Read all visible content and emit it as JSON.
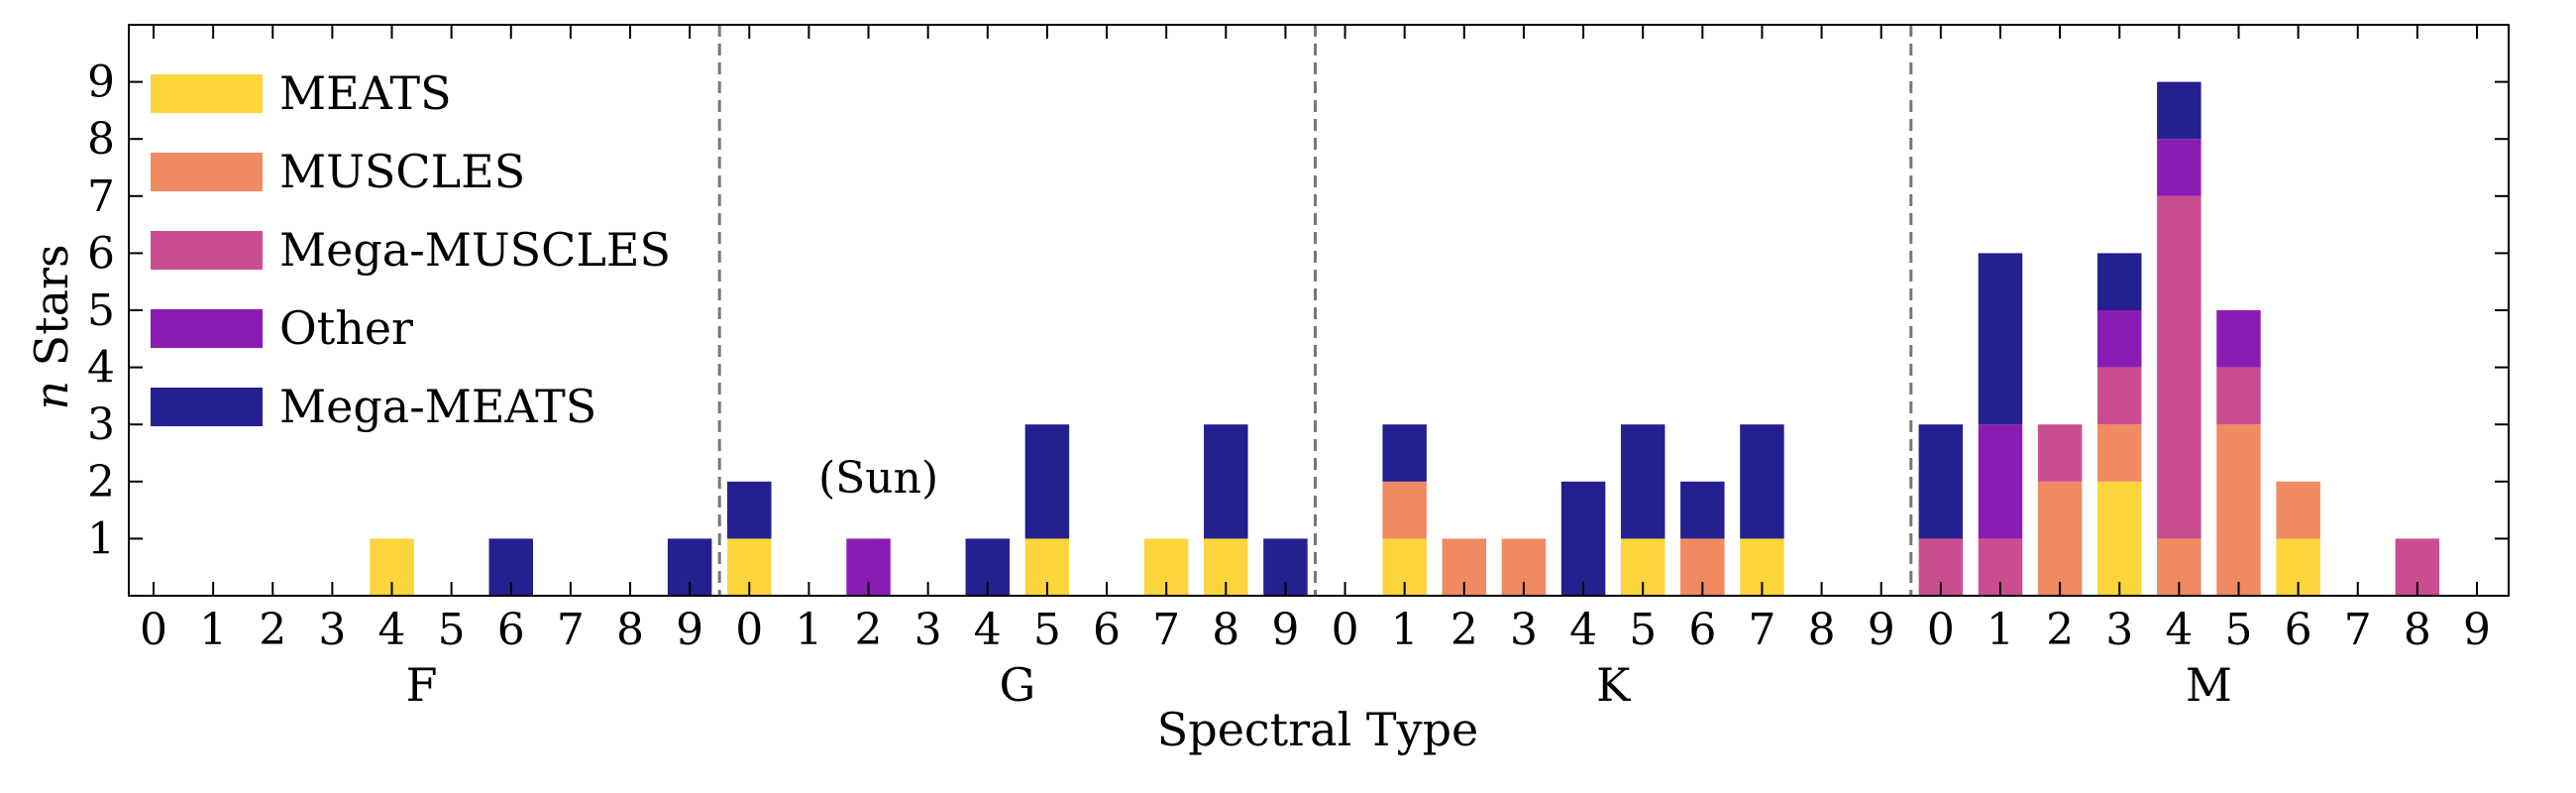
{
  "chart_data": {
    "type": "bar",
    "stacked": true,
    "xlabel": "Spectral Type",
    "ylabel_italic": "n",
    "ylabel_rest": " Stars",
    "ylim": [
      0,
      10
    ],
    "yticks": [
      1,
      2,
      3,
      4,
      5,
      6,
      7,
      8,
      9
    ],
    "subclasses": [
      "0",
      "1",
      "2",
      "3",
      "4",
      "5",
      "6",
      "7",
      "8",
      "9"
    ],
    "classes": [
      "F",
      "G",
      "K",
      "M"
    ],
    "grid": false,
    "legend_position": "top-left",
    "annotation": {
      "text": "(Sun)",
      "class": "G",
      "subclass": 2
    },
    "series": [
      {
        "name": "MEATS",
        "color": "#fcd43b"
      },
      {
        "name": "MUSCLES",
        "color": "#ef8a62"
      },
      {
        "name": "Mega-MUSCLES",
        "color": "#c94e90"
      },
      {
        "name": "Other",
        "color": "#8b1cb2"
      },
      {
        "name": "Mega-MEATS",
        "color": "#25208f"
      }
    ],
    "bars": [
      {
        "class": "F",
        "subclass": 4,
        "values": [
          1,
          0,
          0,
          0,
          0
        ]
      },
      {
        "class": "F",
        "subclass": 6,
        "values": [
          0,
          0,
          0,
          0,
          1
        ]
      },
      {
        "class": "F",
        "subclass": 9,
        "values": [
          0,
          0,
          0,
          0,
          1
        ]
      },
      {
        "class": "G",
        "subclass": 0,
        "values": [
          1,
          0,
          0,
          0,
          1
        ]
      },
      {
        "class": "G",
        "subclass": 2,
        "values": [
          0,
          0,
          0,
          1,
          0
        ]
      },
      {
        "class": "G",
        "subclass": 4,
        "values": [
          0,
          0,
          0,
          0,
          1
        ]
      },
      {
        "class": "G",
        "subclass": 5,
        "values": [
          1,
          0,
          0,
          0,
          2
        ]
      },
      {
        "class": "G",
        "subclass": 7,
        "values": [
          1,
          0,
          0,
          0,
          0
        ]
      },
      {
        "class": "G",
        "subclass": 8,
        "values": [
          1,
          0,
          0,
          0,
          2
        ]
      },
      {
        "class": "G",
        "subclass": 9,
        "values": [
          0,
          0,
          0,
          0,
          1
        ]
      },
      {
        "class": "K",
        "subclass": 1,
        "values": [
          1,
          1,
          0,
          0,
          1
        ]
      },
      {
        "class": "K",
        "subclass": 2,
        "values": [
          0,
          1,
          0,
          0,
          0
        ]
      },
      {
        "class": "K",
        "subclass": 3,
        "values": [
          0,
          1,
          0,
          0,
          0
        ]
      },
      {
        "class": "K",
        "subclass": 4,
        "values": [
          0,
          0,
          0,
          0,
          2
        ]
      },
      {
        "class": "K",
        "subclass": 5,
        "values": [
          1,
          0,
          0,
          0,
          2
        ]
      },
      {
        "class": "K",
        "subclass": 6,
        "values": [
          0,
          1,
          0,
          0,
          1
        ]
      },
      {
        "class": "K",
        "subclass": 7,
        "values": [
          1,
          0,
          0,
          0,
          2
        ]
      },
      {
        "class": "M",
        "subclass": 0,
        "values": [
          0,
          0,
          1,
          0,
          2
        ]
      },
      {
        "class": "M",
        "subclass": 1,
        "values": [
          0,
          0,
          1,
          2,
          3
        ]
      },
      {
        "class": "M",
        "subclass": 2,
        "values": [
          0,
          2,
          1,
          0,
          0
        ]
      },
      {
        "class": "M",
        "subclass": 3,
        "values": [
          2,
          1,
          1,
          1,
          1
        ]
      },
      {
        "class": "M",
        "subclass": 4,
        "values": [
          0,
          1,
          6,
          1,
          1
        ]
      },
      {
        "class": "M",
        "subclass": 5,
        "values": [
          0,
          3,
          1,
          1,
          0
        ]
      },
      {
        "class": "M",
        "subclass": 6,
        "values": [
          1,
          1,
          0,
          0,
          0
        ]
      },
      {
        "class": "M",
        "subclass": 8,
        "values": [
          0,
          0,
          1,
          0,
          0
        ]
      }
    ]
  }
}
